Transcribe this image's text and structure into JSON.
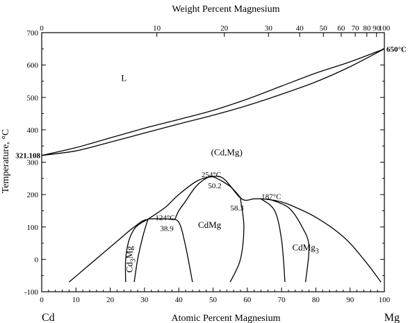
{
  "chart_data": {
    "type": "line",
    "title": "Weight Percent Magnesium",
    "xlabel": "Atomic Percent Magnesium",
    "ylabel": "Temperature, °C",
    "xlim": [
      0,
      100
    ],
    "ylim": [
      -100,
      700
    ],
    "grid": false,
    "x_ticks": [
      0,
      10,
      20,
      30,
      40,
      50,
      60,
      70,
      80,
      90,
      100
    ],
    "y_ticks": [
      -100,
      0,
      100,
      200,
      300,
      400,
      500,
      600,
      700
    ],
    "top_ticks": [
      {
        "label": "0",
        "at_pct": 0
      },
      {
        "label": "10",
        "at_pct": 33.6
      },
      {
        "label": "20",
        "at_pct": 53.3
      },
      {
        "label": "30",
        "at_pct": 66.2
      },
      {
        "label": "40",
        "at_pct": 75.3
      },
      {
        "label": "50",
        "at_pct": 82.2
      },
      {
        "label": "60",
        "at_pct": 87.4
      },
      {
        "label": "70",
        "at_pct": 91.5
      },
      {
        "label": "80",
        "at_pct": 94.9
      },
      {
        "label": "90",
        "at_pct": 97.7
      },
      {
        "label": "100",
        "at_pct": 100
      }
    ],
    "series": [
      {
        "values": [
          [
            0,
            321.1
          ],
          [
            10,
            345
          ],
          [
            20,
            375
          ],
          [
            30,
            405
          ],
          [
            40,
            432
          ],
          [
            50,
            460
          ],
          [
            60,
            495
          ],
          [
            70,
            535
          ],
          [
            80,
            575
          ],
          [
            90,
            610
          ],
          [
            100,
            650
          ]
        ]
      },
      {
        "values": [
          [
            0,
            321.1
          ],
          [
            10,
            335
          ],
          [
            20,
            362
          ],
          [
            30,
            390
          ],
          [
            40,
            418
          ],
          [
            50,
            445
          ],
          [
            60,
            475
          ],
          [
            70,
            510
          ],
          [
            80,
            548
          ],
          [
            90,
            595
          ],
          [
            100,
            650
          ]
        ]
      },
      {
        "values": [
          [
            8,
            -70
          ],
          [
            13,
            -25
          ],
          [
            18,
            20
          ],
          [
            23,
            65
          ],
          [
            27,
            100
          ],
          [
            31,
            124
          ],
          [
            38.9,
            124
          ]
        ]
      },
      {
        "values": [
          [
            24.5,
            -70
          ],
          [
            24.5,
            0
          ],
          [
            25.5,
            60
          ],
          [
            27.5,
            100
          ],
          [
            31,
            124
          ]
        ]
      },
      {
        "values": [
          [
            27,
            -70
          ],
          [
            28,
            0
          ],
          [
            29.5,
            70
          ],
          [
            31,
            124
          ]
        ]
      },
      {
        "values": [
          [
            37,
            124
          ],
          [
            40,
            115
          ],
          [
            42,
            40
          ],
          [
            44,
            -70
          ]
        ]
      },
      {
        "values": [
          [
            31,
            124
          ],
          [
            36,
            160
          ],
          [
            40,
            200
          ],
          [
            45,
            240
          ],
          [
            49,
            254
          ],
          [
            53,
            250
          ],
          [
            58.3,
            187
          ],
          [
            62,
            187
          ],
          [
            64,
            187
          ]
        ]
      },
      {
        "values": [
          [
            38.9,
            124
          ],
          [
            40,
            150
          ],
          [
            42,
            180
          ],
          [
            45,
            225
          ],
          [
            48,
            250
          ],
          [
            50.2,
            254
          ],
          [
            55,
            225
          ],
          [
            58.3,
            187
          ]
        ]
      },
      {
        "values": [
          [
            58,
            187
          ],
          [
            59,
            100
          ],
          [
            58,
            0
          ],
          [
            55,
            -70
          ]
        ]
      },
      {
        "values": [
          [
            64,
            187
          ],
          [
            68,
            182
          ],
          [
            72,
            170
          ],
          [
            80,
            130
          ],
          [
            88,
            70
          ],
          [
            94,
            0
          ],
          [
            99,
            -70
          ]
        ]
      },
      {
        "values": [
          [
            64,
            187
          ],
          [
            68,
            150
          ],
          [
            70,
            60
          ],
          [
            71,
            -70
          ]
        ]
      },
      {
        "values": [
          [
            66,
            187
          ],
          [
            72,
            160
          ],
          [
            76,
            100
          ],
          [
            78,
            40
          ],
          [
            77,
            -70
          ]
        ]
      }
    ],
    "annotations": [
      {
        "text": "L",
        "x": 24,
        "y": 560
      },
      {
        "text": "(Cd,Mg)",
        "x": 54,
        "y": 330
      },
      {
        "text": "254°C",
        "x": 49.5,
        "y": 262
      },
      {
        "text": "50.2",
        "x": 50.5,
        "y": 228
      },
      {
        "text": "187°C",
        "x": 67,
        "y": 195
      },
      {
        "text": "58.3",
        "x": 57,
        "y": 160
      },
      {
        "text": "124°C",
        "x": 36,
        "y": 130
      },
      {
        "text": "38.9",
        "x": 36.5,
        "y": 96
      },
      {
        "text": "CdMg",
        "x": 49,
        "y": 106
      },
      {
        "text": "CdMg3",
        "x": 77,
        "y": 28
      },
      {
        "text": "Cd3Mg",
        "x": 26.5,
        "y": 0
      },
      {
        "text": "321.108",
        "x": -4.5,
        "y": 321
      },
      {
        "text": "650°C",
        "x": 104.5,
        "y": 650
      }
    ],
    "corner_labels": {
      "left": "Cd",
      "right": "Mg"
    }
  }
}
